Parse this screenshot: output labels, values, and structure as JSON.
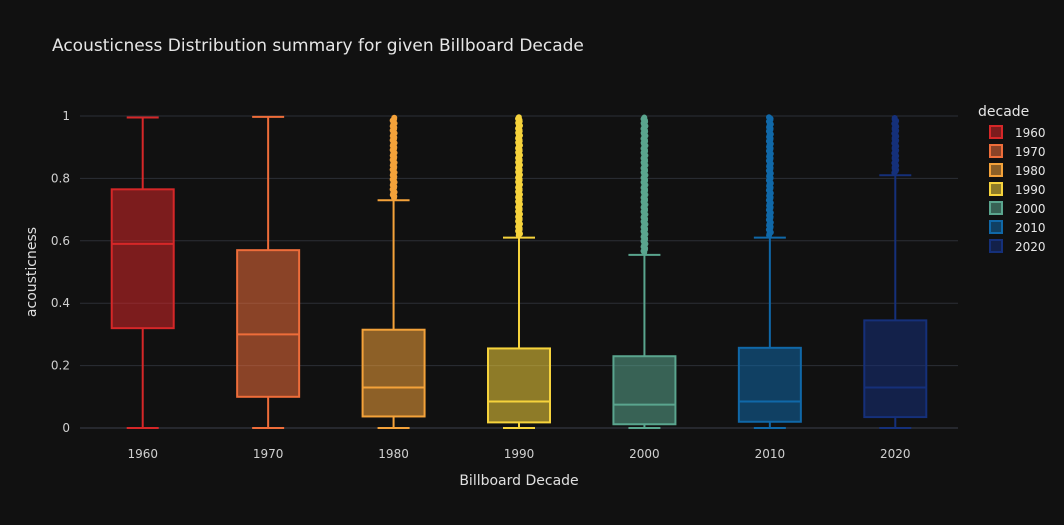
{
  "chart_data": {
    "type": "box",
    "title": "Acousticness Distribution summary for given Billboard Decade",
    "xlabel": "Billboard Decade",
    "ylabel": "acousticness",
    "ylim": [
      0,
      1
    ],
    "yticks": [
      "0",
      "0.2",
      "0.4",
      "0.6",
      "0.8",
      "1"
    ],
    "legend_title": "decade",
    "legend_position": "right",
    "grid": true,
    "categories": [
      "1960",
      "1970",
      "1980",
      "1990",
      "2000",
      "2010",
      "2020"
    ],
    "series": [
      {
        "name": "1960",
        "color": "#d62728",
        "min": 0.0,
        "q1": 0.32,
        "median": 0.59,
        "q3": 0.765,
        "max": 0.995,
        "outliers_from": null
      },
      {
        "name": "1970",
        "color": "#ee6d3a",
        "min": 0.0,
        "q1": 0.1,
        "median": 0.3,
        "q3": 0.57,
        "max": 0.997,
        "outliers_from": null
      },
      {
        "name": "1980",
        "color": "#f4a23a",
        "min": 0.0,
        "q1": 0.037,
        "median": 0.13,
        "q3": 0.315,
        "max": 0.73,
        "outliers_from": 0.73
      },
      {
        "name": "1990",
        "color": "#f6d33c",
        "min": 0.0,
        "q1": 0.018,
        "median": 0.085,
        "q3": 0.255,
        "max": 0.61,
        "outliers_from": 0.61
      },
      {
        "name": "2000",
        "color": "#5aa58e",
        "min": 0.0,
        "q1": 0.012,
        "median": 0.075,
        "q3": 0.23,
        "max": 0.555,
        "outliers_from": 0.555
      },
      {
        "name": "2010",
        "color": "#1068a8",
        "min": 0.0,
        "q1": 0.02,
        "median": 0.085,
        "q3": 0.257,
        "max": 0.61,
        "outliers_from": 0.61
      },
      {
        "name": "2020",
        "color": "#15307a",
        "min": 0.0,
        "q1": 0.035,
        "median": 0.13,
        "q3": 0.345,
        "max": 0.81,
        "outliers_from": 0.81
      }
    ]
  }
}
